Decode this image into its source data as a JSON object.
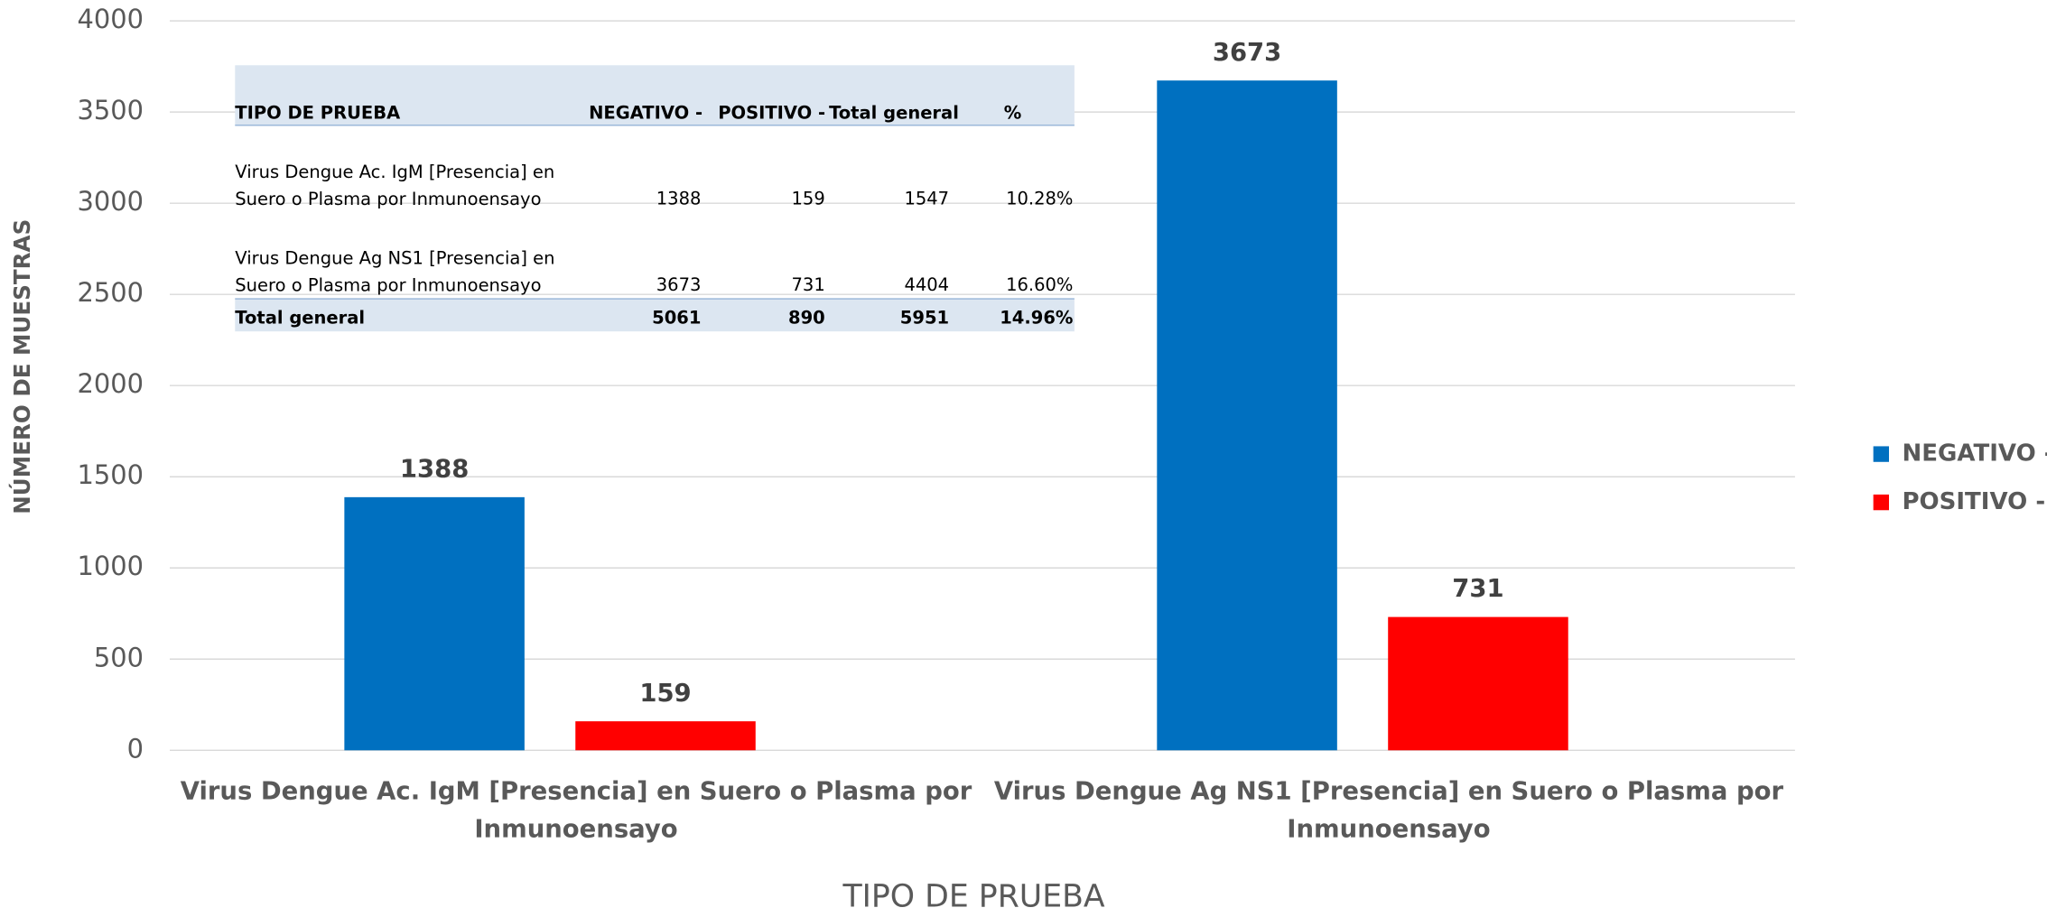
{
  "chart_data": {
    "type": "bar",
    "x_label": "TIPO DE PRUEBA",
    "y_label": "NÚMERO DE MUESTRAS",
    "categories": [
      "Virus Dengue Ac. IgM [Presencia] en Suero o Plasma por Inmunoensayo",
      "Virus Dengue Ag NS1 [Presencia] en Suero o Plasma por Inmunoensayo"
    ],
    "series": [
      {
        "name": "NEGATIVO -",
        "color": "#0070c0",
        "values": [
          1388,
          3673
        ]
      },
      {
        "name": "POSITIVO -",
        "color": "#ff0000",
        "values": [
          159,
          731
        ]
      }
    ],
    "ylim": [
      0,
      4000
    ],
    "yticks": [
      0,
      500,
      1000,
      1500,
      2000,
      2500,
      3000,
      3500,
      4000
    ],
    "grid": true,
    "legend": "right"
  },
  "table": {
    "header": [
      "TIPO DE PRUEBA",
      "NEGATIVO -",
      "POSITIVO -",
      "Total general",
      "%"
    ],
    "rows": [
      [
        "Virus Dengue Ac. IgM [Presencia] en Suero o Plasma por Inmunoensayo",
        "1388",
        "159",
        "1547",
        "10.28%"
      ],
      [
        "Virus Dengue Ag NS1 [Presencia] en Suero o Plasma por Inmunoensayo",
        "3673",
        "731",
        "4404",
        "16.60%"
      ]
    ],
    "total": [
      "Total general",
      "5061",
      "890",
      "5951",
      "14.96%"
    ]
  }
}
